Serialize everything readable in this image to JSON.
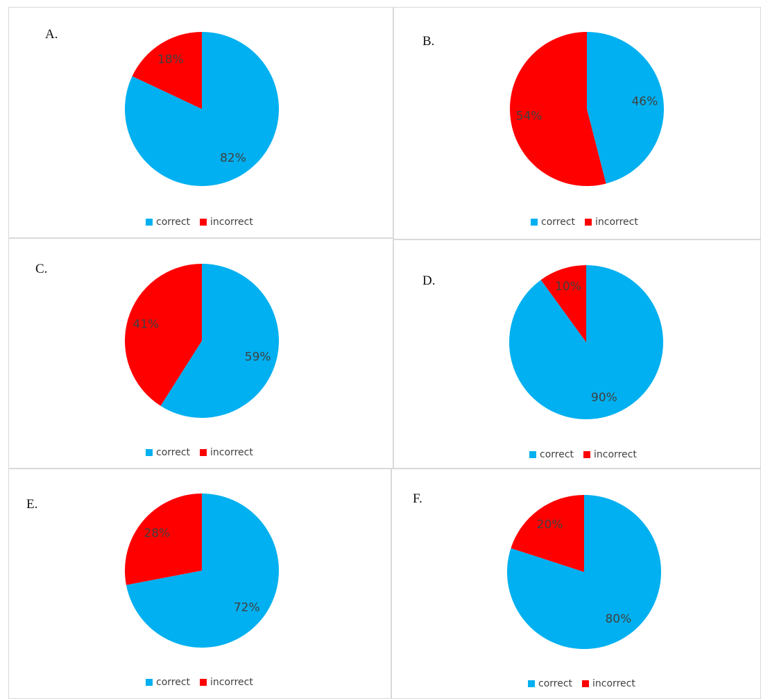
{
  "colors": {
    "correct": "#00b0f0",
    "incorrect": "#ff0000"
  },
  "legend": {
    "correct": "correct",
    "incorrect": "incorrect"
  },
  "chart_data": [
    {
      "type": "pie",
      "panel_label": "A.",
      "categories": [
        "correct",
        "incorrect"
      ],
      "values": [
        82,
        18
      ],
      "data_labels": [
        "82%",
        "18%"
      ],
      "legend_position": "bottom"
    },
    {
      "type": "pie",
      "panel_label": "B.",
      "categories": [
        "correct",
        "incorrect"
      ],
      "values": [
        46,
        54
      ],
      "data_labels": [
        "46%",
        "54%"
      ],
      "legend_position": "bottom"
    },
    {
      "type": "pie",
      "panel_label": "C.",
      "categories": [
        "correct",
        "incorrect"
      ],
      "values": [
        59,
        41
      ],
      "data_labels": [
        "59%",
        "41%"
      ],
      "legend_position": "bottom"
    },
    {
      "type": "pie",
      "panel_label": "D.",
      "categories": [
        "correct",
        "incorrect"
      ],
      "values": [
        90,
        10
      ],
      "data_labels": [
        "90%",
        "10%"
      ],
      "legend_position": "bottom"
    },
    {
      "type": "pie",
      "panel_label": "E.",
      "categories": [
        "correct",
        "incorrect"
      ],
      "values": [
        72,
        28
      ],
      "data_labels": [
        "72%",
        "28%"
      ],
      "legend_position": "bottom"
    },
    {
      "type": "pie",
      "panel_label": "F.",
      "categories": [
        "correct",
        "incorrect"
      ],
      "values": [
        80,
        20
      ],
      "data_labels": [
        "80%",
        "20%"
      ],
      "legend_position": "bottom"
    }
  ]
}
